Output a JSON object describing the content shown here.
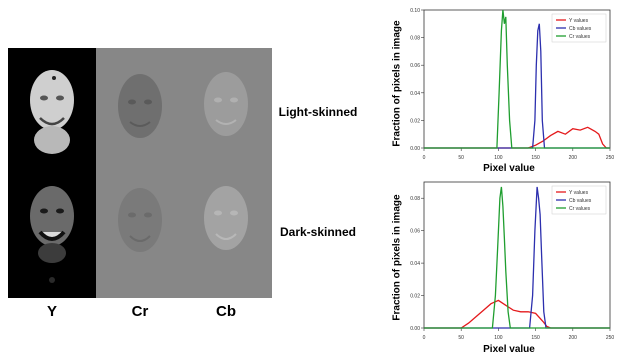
{
  "figure": {
    "column_labels": [
      "Y",
      "Cr",
      "Cb"
    ],
    "row_labels": [
      "Light-skinned",
      "Dark-skinned"
    ]
  },
  "colors": {
    "y": "#e41a1c",
    "cb": "#2c2fae",
    "cr": "#1f9e2f",
    "panel_bg": "#878787"
  },
  "chart_data": [
    {
      "type": "line",
      "title": "",
      "xlabel": "Pixel value",
      "ylabel": "Fraction of pixels in image",
      "xlim": [
        0,
        250
      ],
      "ylim": [
        0,
        0.1
      ],
      "xticks": [
        0,
        50,
        100,
        150,
        200,
        250
      ],
      "xtick_labels": [
        "0",
        "50",
        "100",
        "150",
        "200",
        "250"
      ],
      "yticks": [
        0,
        0.02,
        0.04,
        0.06,
        0.08,
        0.1
      ],
      "ytick_labels": [
        "0.00",
        "0.02",
        "0.04",
        "0.06",
        "0.08",
        "0.10"
      ],
      "legend": {
        "position": "top-right",
        "entries": [
          "Y values",
          "Cb values",
          "Cr values"
        ]
      },
      "series": [
        {
          "name": "Y values",
          "color": "#e41a1c",
          "x": [
            0,
            140,
            150,
            160,
            170,
            180,
            190,
            200,
            210,
            220,
            230,
            235,
            240,
            245,
            250
          ],
          "y": [
            0,
            0,
            0.002,
            0.005,
            0.009,
            0.012,
            0.01,
            0.014,
            0.013,
            0.015,
            0.012,
            0.01,
            0.003,
            0,
            0
          ]
        },
        {
          "name": "Cb values",
          "color": "#2c2fae",
          "x": [
            0,
            146,
            149,
            151,
            153,
            155,
            157,
            159,
            162,
            250
          ],
          "y": [
            0,
            0,
            0.02,
            0.06,
            0.085,
            0.09,
            0.07,
            0.02,
            0,
            0
          ]
        },
        {
          "name": "Cr values",
          "color": "#1f9e2f",
          "x": [
            0,
            98,
            101,
            104,
            106,
            108,
            110,
            112,
            115,
            118,
            250
          ],
          "y": [
            0,
            0,
            0.04,
            0.085,
            0.1,
            0.09,
            0.095,
            0.06,
            0.02,
            0,
            0
          ]
        }
      ]
    },
    {
      "type": "line",
      "title": "",
      "xlabel": "Pixel value",
      "ylabel": "Fraction of pixels in image",
      "xlim": [
        0,
        250
      ],
      "ylim": [
        0,
        0.09
      ],
      "xticks": [
        0,
        50,
        100,
        150,
        200,
        250
      ],
      "xtick_labels": [
        "0",
        "50",
        "100",
        "150",
        "200",
        "250"
      ],
      "yticks": [
        0,
        0.02,
        0.04,
        0.06,
        0.08
      ],
      "ytick_labels": [
        "0.00",
        "0.02",
        "0.04",
        "0.06",
        "0.08"
      ],
      "legend": {
        "position": "top-right",
        "entries": [
          "Y values",
          "Cb values",
          "Cr values"
        ]
      },
      "series": [
        {
          "name": "Y values",
          "color": "#e41a1c",
          "x": [
            0,
            50,
            60,
            70,
            80,
            90,
            100,
            110,
            120,
            130,
            140,
            150,
            160,
            165,
            170,
            250
          ],
          "y": [
            0,
            0,
            0.003,
            0.007,
            0.011,
            0.015,
            0.017,
            0.014,
            0.011,
            0.01,
            0.01,
            0.009,
            0.004,
            0.001,
            0,
            0
          ]
        },
        {
          "name": "Cb values",
          "color": "#2c2fae",
          "x": [
            0,
            142,
            146,
            149,
            152,
            154,
            156,
            158,
            161,
            164,
            250
          ],
          "y": [
            0,
            0,
            0.02,
            0.06,
            0.087,
            0.08,
            0.07,
            0.045,
            0.01,
            0,
            0
          ]
        },
        {
          "name": "Cr values",
          "color": "#1f9e2f",
          "x": [
            0,
            92,
            96,
            99,
            102,
            104,
            106,
            108,
            110,
            113,
            116,
            250
          ],
          "y": [
            0,
            0,
            0.02,
            0.05,
            0.08,
            0.087,
            0.075,
            0.055,
            0.035,
            0.01,
            0,
            0
          ]
        }
      ]
    }
  ]
}
